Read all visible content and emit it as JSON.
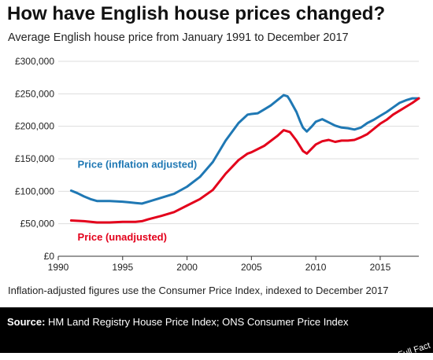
{
  "title": "How have English house prices changed?",
  "subtitle": "Average English house price from January 1991 to December 2017",
  "note": "Inflation-adjusted figures use the Consumer Price Index, indexed to December 2017",
  "source": {
    "label": "Source:",
    "text": "HM Land Registry House Price Index; ONS Consumer Price Index"
  },
  "brand": "Full Fact",
  "chart_data": {
    "type": "line",
    "title": "How have English house prices changed?",
    "subtitle": "Average English house price from January 1991 to December 2017",
    "xlabel": "",
    "ylabel": "",
    "xlim": [
      1990,
      2018
    ],
    "ylim": [
      0,
      300000
    ],
    "x_ticks": [
      "1990",
      "1995",
      "2000",
      "2005",
      "2010",
      "2015"
    ],
    "y_ticks": [
      "£0",
      "£50,000",
      "£100,000",
      "£150,000",
      "£200,000",
      "£250,000",
      "£300,000"
    ],
    "grid": "horizontal",
    "legend": "inline labels",
    "series": [
      {
        "name": "Price (inflation adjusted)",
        "color": "#1f78b4",
        "label_at": [
          1991.5,
          136000
        ],
        "points": [
          [
            1991.0,
            101000
          ],
          [
            1991.5,
            97000
          ],
          [
            1992.0,
            92000
          ],
          [
            1992.5,
            88000
          ],
          [
            1993.0,
            85000
          ],
          [
            1994.0,
            85000
          ],
          [
            1995.0,
            84000
          ],
          [
            1995.5,
            83000
          ],
          [
            1996.0,
            82000
          ],
          [
            1996.5,
            81000
          ],
          [
            1997.0,
            84000
          ],
          [
            1997.5,
            87000
          ],
          [
            1998.0,
            90000
          ],
          [
            1999.0,
            96000
          ],
          [
            2000.0,
            107000
          ],
          [
            2001.0,
            122000
          ],
          [
            2002.0,
            145000
          ],
          [
            2003.0,
            178000
          ],
          [
            2004.0,
            205000
          ],
          [
            2004.7,
            218000
          ],
          [
            2005.0,
            219000
          ],
          [
            2005.5,
            220000
          ],
          [
            2006.0,
            226000
          ],
          [
            2006.5,
            232000
          ],
          [
            2007.0,
            240000
          ],
          [
            2007.5,
            248000
          ],
          [
            2007.8,
            246000
          ],
          [
            2008.0,
            240000
          ],
          [
            2008.5,
            222000
          ],
          [
            2008.8,
            207000
          ],
          [
            2009.0,
            198000
          ],
          [
            2009.3,
            192000
          ],
          [
            2009.7,
            200000
          ],
          [
            2010.0,
            207000
          ],
          [
            2010.5,
            211000
          ],
          [
            2011.0,
            206000
          ],
          [
            2011.5,
            201000
          ],
          [
            2012.0,
            198000
          ],
          [
            2012.5,
            197000
          ],
          [
            2013.0,
            195000
          ],
          [
            2013.5,
            198000
          ],
          [
            2014.0,
            205000
          ],
          [
            2014.5,
            210000
          ],
          [
            2015.0,
            216000
          ],
          [
            2015.5,
            222000
          ],
          [
            2016.0,
            229000
          ],
          [
            2016.5,
            236000
          ],
          [
            2017.0,
            240000
          ],
          [
            2017.5,
            243000
          ],
          [
            2018.0,
            243000
          ]
        ]
      },
      {
        "name": "Price (unadjusted)",
        "color": "#e3001b",
        "label_at": [
          1991.5,
          24000
        ],
        "points": [
          [
            1991.0,
            55000
          ],
          [
            1992.0,
            54000
          ],
          [
            1993.0,
            52000
          ],
          [
            1994.0,
            52000
          ],
          [
            1995.0,
            53000
          ],
          [
            1996.0,
            53000
          ],
          [
            1996.5,
            54000
          ],
          [
            1997.0,
            57000
          ],
          [
            1998.0,
            62000
          ],
          [
            1999.0,
            68000
          ],
          [
            2000.0,
            78000
          ],
          [
            2001.0,
            88000
          ],
          [
            2002.0,
            102000
          ],
          [
            2003.0,
            127000
          ],
          [
            2004.0,
            148000
          ],
          [
            2004.7,
            158000
          ],
          [
            2005.0,
            160000
          ],
          [
            2006.0,
            170000
          ],
          [
            2007.0,
            185000
          ],
          [
            2007.5,
            194000
          ],
          [
            2008.0,
            191000
          ],
          [
            2008.5,
            178000
          ],
          [
            2009.0,
            162000
          ],
          [
            2009.3,
            158000
          ],
          [
            2009.7,
            166000
          ],
          [
            2010.0,
            172000
          ],
          [
            2010.5,
            177000
          ],
          [
            2011.0,
            179000
          ],
          [
            2011.5,
            176000
          ],
          [
            2012.0,
            178000
          ],
          [
            2012.5,
            178000
          ],
          [
            2013.0,
            179000
          ],
          [
            2013.5,
            183000
          ],
          [
            2014.0,
            188000
          ],
          [
            2014.5,
            196000
          ],
          [
            2015.0,
            204000
          ],
          [
            2015.5,
            210000
          ],
          [
            2016.0,
            218000
          ],
          [
            2016.5,
            224000
          ],
          [
            2017.0,
            230000
          ],
          [
            2017.5,
            236000
          ],
          [
            2018.0,
            243000
          ]
        ]
      }
    ]
  }
}
